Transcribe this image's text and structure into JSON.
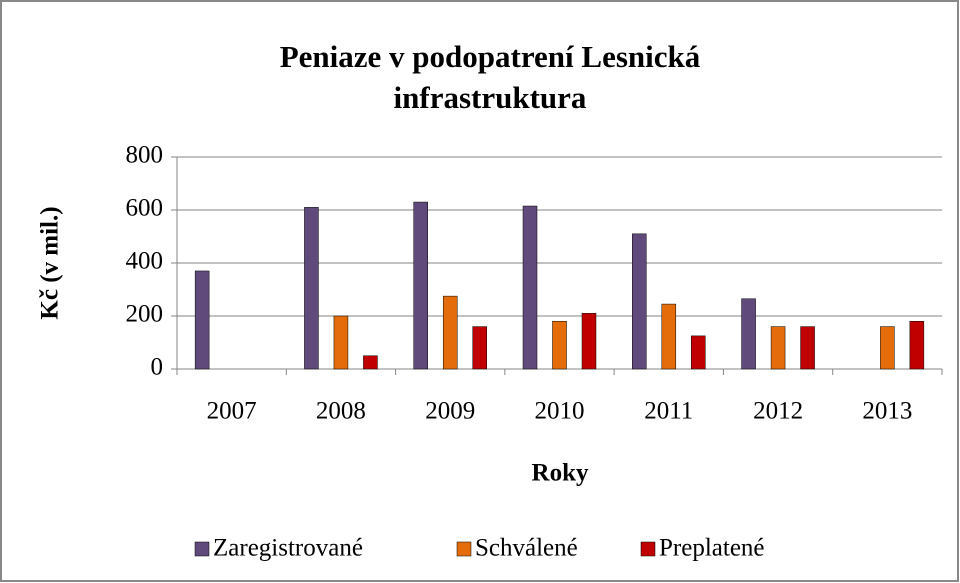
{
  "chart_data": {
    "type": "bar",
    "title": [
      "Peniaze v podopatrení Lesnická",
      "infrastruktura"
    ],
    "y_label": "Kč (v mil.)",
    "x_label": "Roky",
    "categories": [
      "2007",
      "2008",
      "2009",
      "2010",
      "2011",
      "2012",
      "2013"
    ],
    "series": [
      {
        "name": "Zaregistrované",
        "color": "#604a7b",
        "values": [
          370,
          610,
          630,
          615,
          510,
          265,
          null
        ]
      },
      {
        "name": "Schválené",
        "color": "#e46c0a",
        "values": [
          null,
          200,
          275,
          180,
          245,
          160,
          160
        ]
      },
      {
        "name": "Preplatené",
        "color": "#c00000",
        "values": [
          null,
          50,
          160,
          210,
          125,
          160,
          180
        ]
      }
    ],
    "ylim": [
      0,
      800
    ],
    "yticks": [
      0,
      200,
      400,
      600,
      800
    ],
    "grid": true,
    "legend": "bottom"
  }
}
